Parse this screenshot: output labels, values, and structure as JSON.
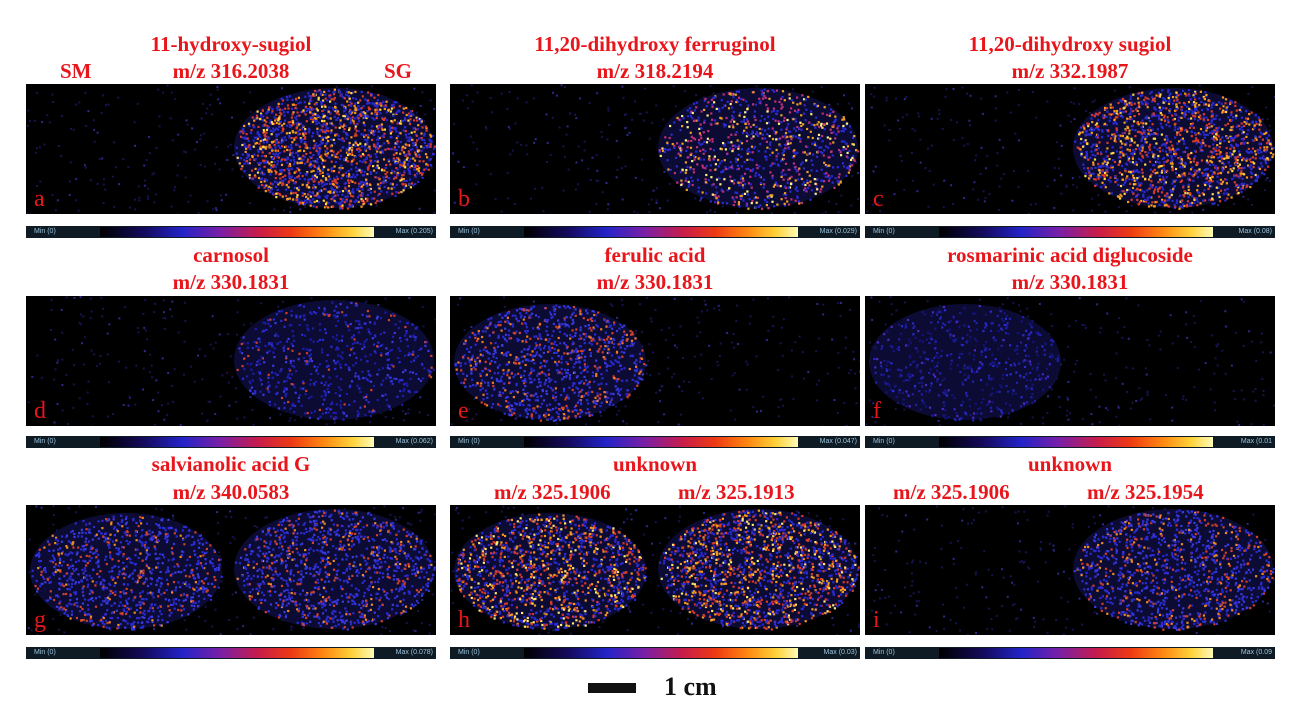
{
  "panels": [
    {
      "id": "a",
      "letter": "a",
      "title": "11-hydroxy-sugiol",
      "mz": "m/z 316.2038",
      "side_left": "SM",
      "side_right": "SG",
      "cmin": "Min (0)",
      "cmax": "Max (0.205)",
      "tissue": "right",
      "intensity": 0.9,
      "colors": [
        "#2a2ad0",
        "#d63a2a",
        "#f59a1a",
        "#ffd84a"
      ]
    },
    {
      "id": "b",
      "letter": "b",
      "title": "11,20-dihydroxy ferruginol",
      "mz": "m/z 318.2194",
      "cmin": "Min (0)",
      "cmax": "Max (0.029)",
      "tissue": "right",
      "intensity": 0.45,
      "colors": [
        "#2a2ad0",
        "#c0307a",
        "#f0a020",
        "#fff080"
      ]
    },
    {
      "id": "c",
      "letter": "c",
      "title": "11,20-dihydroxy sugiol",
      "mz": "m/z 332.1987",
      "cmin": "Min (0)",
      "cmax": "Max (0.08)",
      "tissue": "right",
      "intensity": 0.75,
      "colors": [
        "#2a2ad0",
        "#d63a2a",
        "#f59a1a",
        "#ffd84a"
      ]
    },
    {
      "id": "d",
      "letter": "d",
      "title": "carnosol",
      "mz": "m/z 330.1831",
      "cmin": "Min (0)",
      "cmax": "Max (0.062)",
      "tissue": "right",
      "intensity": 0.3,
      "colors": [
        "#1c1ca8",
        "#2a2ad0",
        "#3a3ae0",
        "#d0402a"
      ]
    },
    {
      "id": "e",
      "letter": "e",
      "title": "ferulic acid",
      "mz": "m/z 330.1831",
      "cmin": "Min (0)",
      "cmax": "Max (0.047)",
      "tissue": "left",
      "intensity": 0.5,
      "colors": [
        "#2a2ad0",
        "#3a3ae0",
        "#d0402a",
        "#f07a20"
      ]
    },
    {
      "id": "f",
      "letter": "f",
      "title": "rosmarinic acid diglucoside",
      "mz": "m/z 330.1831",
      "cmin": "Min (0)",
      "cmax": "Max (0.01",
      "tissue": "left",
      "intensity": 0.25,
      "colors": [
        "#14147a",
        "#2020a8",
        "#2a2ad0",
        "#4a2ac0"
      ]
    },
    {
      "id": "g",
      "letter": "g",
      "title": "salvianolic acid G",
      "mz": "m/z 340.0583",
      "cmin": "Min (0)",
      "cmax": "Max (0.078)",
      "tissue": "both",
      "intensity": 0.55,
      "colors": [
        "#2a2ad0",
        "#3a3ae0",
        "#d0402a",
        "#f08a20"
      ]
    },
    {
      "id": "h",
      "letter": "h",
      "title": "unknown",
      "mz_left": "m/z 325.1906",
      "mz_right": "m/z 325.1913",
      "cmin": "Min (0)",
      "cmax": "Max (0.03)",
      "tissue": "both",
      "intensity": 0.8,
      "colors": [
        "#2a2ad0",
        "#d63a2a",
        "#f59a1a",
        "#ffe870"
      ]
    },
    {
      "id": "i",
      "letter": "i",
      "title": "unknown",
      "mz_left": "m/z 325.1906",
      "mz_right": "m/z 325.1954",
      "cmin": "Min (0)",
      "cmax": "Max (0.09",
      "tissue": "right",
      "intensity": 0.55,
      "colors": [
        "#2a2ad0",
        "#3a3ae0",
        "#d0402a",
        "#f08a20"
      ]
    }
  ],
  "scale": {
    "label": "1 cm"
  }
}
